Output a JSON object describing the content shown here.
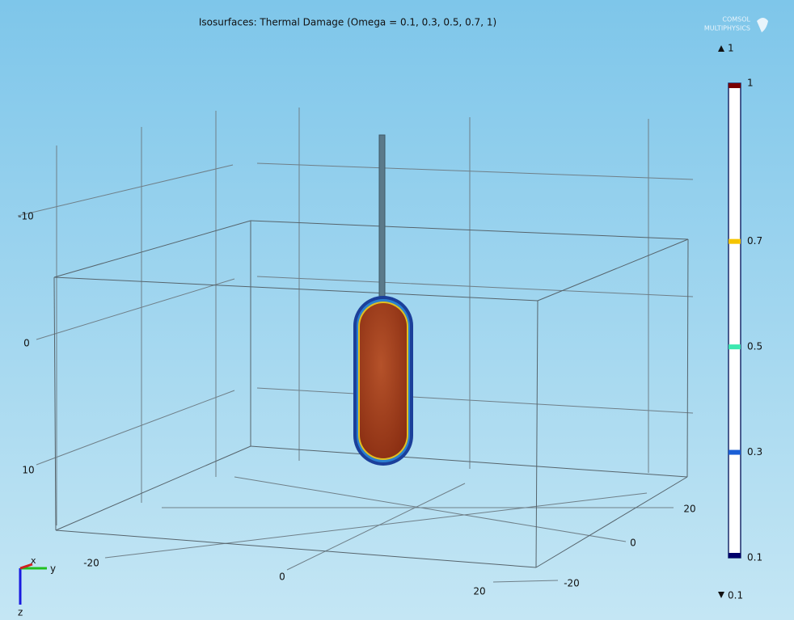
{
  "title": "Isosurfaces: Thermal Damage (Omega = 0.1, 0.3, 0.5, 0.7, 1)",
  "logo": [
    "COMSOL",
    "MULTIPHYSICS"
  ],
  "colorbar": {
    "min": 0.1,
    "max": 1,
    "levels": [
      {
        "value": 0.1,
        "color": "#00006b"
      },
      {
        "value": 0.3,
        "color": "#1a5fd6"
      },
      {
        "value": 0.5,
        "color": "#3de8b0"
      },
      {
        "value": 0.7,
        "color": "#f5c400"
      },
      {
        "value": 1,
        "color": "#7a0000"
      }
    ]
  },
  "axes": {
    "z_ticks": [
      -10,
      0,
      10
    ],
    "x_ticks": [
      -20,
      0,
      20
    ],
    "y_ticks": [
      20,
      0,
      -20
    ]
  },
  "triad": {
    "x": "x",
    "y": "y",
    "z": "z"
  }
}
